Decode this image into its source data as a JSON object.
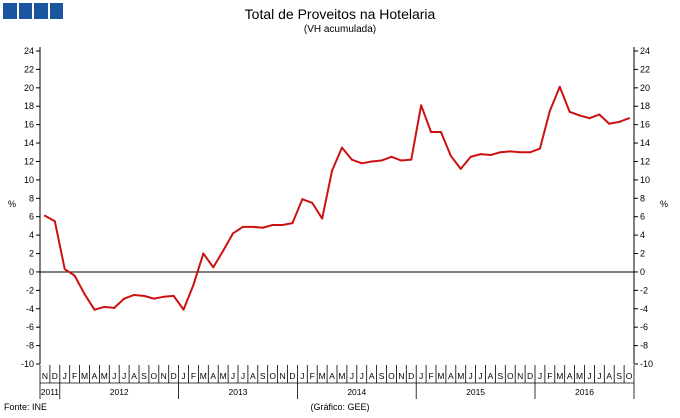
{
  "logo": {
    "colors": [
      "#1a55a0",
      "#1a55a0",
      "#1a55a0",
      "#1a55a0"
    ]
  },
  "header": {
    "title": "Total de Proveitos na Hotelaria",
    "subtitle": "(VH acumulada)"
  },
  "footer": {
    "source": "Fonte: INE",
    "credit": "(Gráfico: GEE)"
  },
  "chart_data": {
    "type": "line",
    "title": "Total de Proveitos na Hotelaria",
    "subtitle": "(VH acumulada)",
    "ylabel": "%",
    "ylabel_right": "%",
    "ylim": [
      -10,
      24
    ],
    "yticks": [
      -10,
      -8,
      -6,
      -4,
      -2,
      0,
      2,
      4,
      6,
      8,
      10,
      12,
      14,
      16,
      18,
      20,
      22,
      24
    ],
    "grid": false,
    "line_color": "#cc1111",
    "month_labels": [
      "N",
      "D",
      "J",
      "F",
      "M",
      "A",
      "M",
      "J",
      "J",
      "A",
      "S",
      "O",
      "N",
      "D",
      "J",
      "F",
      "M",
      "A",
      "M",
      "J",
      "J",
      "A",
      "S",
      "O",
      "N",
      "D",
      "J",
      "F",
      "M",
      "A",
      "M",
      "J",
      "J",
      "A",
      "S",
      "O",
      "N",
      "D",
      "J",
      "F",
      "M",
      "A",
      "M",
      "J",
      "J",
      "A",
      "S",
      "O",
      "N",
      "D",
      "J",
      "F",
      "M",
      "A",
      "M",
      "J",
      "J",
      "A",
      "S",
      "O"
    ],
    "years": [
      {
        "label": "2011",
        "months": 2
      },
      {
        "label": "2012",
        "months": 12
      },
      {
        "label": "2013",
        "months": 12
      },
      {
        "label": "2014",
        "months": 12
      },
      {
        "label": "2015",
        "months": 12
      },
      {
        "label": "2016",
        "months": 10
      }
    ],
    "x": [
      "2011-11",
      "2011-12",
      "2012-01",
      "2012-02",
      "2012-03",
      "2012-04",
      "2012-05",
      "2012-06",
      "2012-07",
      "2012-08",
      "2012-09",
      "2012-10",
      "2012-11",
      "2012-12",
      "2013-01",
      "2013-02",
      "2013-03",
      "2013-04",
      "2013-05",
      "2013-06",
      "2013-07",
      "2013-08",
      "2013-09",
      "2013-10",
      "2013-11",
      "2013-12",
      "2014-01",
      "2014-02",
      "2014-03",
      "2014-04",
      "2014-05",
      "2014-06",
      "2014-07",
      "2014-08",
      "2014-09",
      "2014-10",
      "2014-11",
      "2014-12",
      "2015-01",
      "2015-02",
      "2015-03",
      "2015-04",
      "2015-05",
      "2015-06",
      "2015-07",
      "2015-08",
      "2015-09",
      "2015-10",
      "2015-11",
      "2015-12",
      "2016-01",
      "2016-02",
      "2016-03",
      "2016-04",
      "2016-05",
      "2016-06",
      "2016-07",
      "2016-08",
      "2016-09",
      "2016-10"
    ],
    "series": [
      {
        "values": [
          6.1,
          5.5,
          0.3,
          -0.4,
          -2.4,
          -4.1,
          -3.8,
          -3.9,
          -2.9,
          -2.5,
          -2.6,
          -2.9,
          -2.7,
          -2.6,
          -4.1,
          -1.4,
          2.0,
          0.5,
          2.3,
          4.2,
          4.9,
          4.9,
          4.8,
          5.1,
          5.1,
          5.3,
          7.9,
          7.5,
          5.8,
          11.0,
          13.5,
          12.2,
          11.8,
          12.0,
          12.1,
          12.5,
          12.1,
          12.2,
          18.1,
          15.2,
          15.2,
          12.6,
          11.2,
          12.5,
          12.8,
          12.7,
          13.0,
          13.1,
          13.0,
          13.0,
          13.4,
          17.5,
          20.1,
          17.4,
          17.0,
          16.7,
          17.1,
          16.1,
          16.3,
          16.7
        ]
      }
    ]
  }
}
